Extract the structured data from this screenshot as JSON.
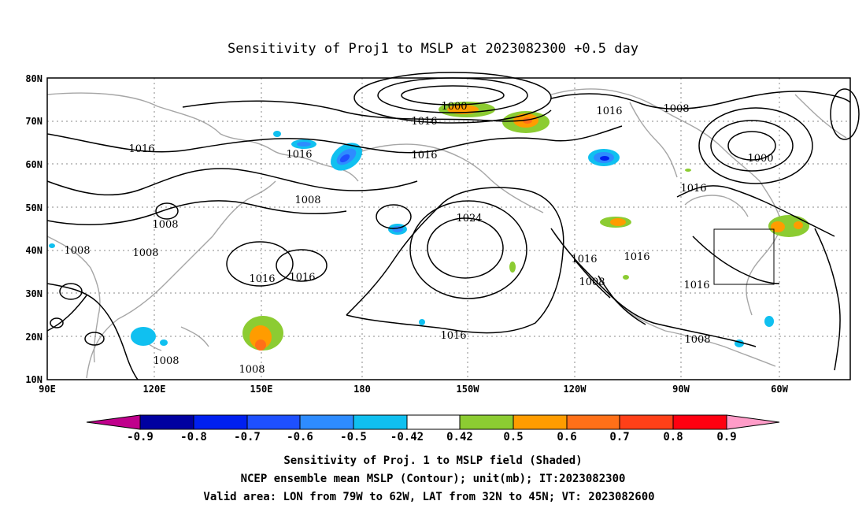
{
  "title": "Sensitivity of Proj1 to MSLP at 2023082300 +0.5 day",
  "lat_labels": [
    "80N",
    "70N",
    "60N",
    "50N",
    "40N",
    "30N",
    "20N",
    "10N"
  ],
  "lon_labels": [
    "90E",
    "120E",
    "150E",
    "180",
    "150W",
    "120W",
    "90W",
    "60W"
  ],
  "contour_labels": [
    "1000",
    "1016",
    "1016",
    "1008",
    "1016",
    "1016",
    "1008",
    "1016",
    "1000",
    "1016",
    "1016",
    "1008",
    "1008",
    "1024",
    "1016",
    "1016",
    "1008",
    "1008",
    "1016",
    "1016",
    "1016",
    "1008",
    "1008",
    "1016",
    "1008",
    "1008"
  ],
  "colorbar": {
    "labels": [
      "-0.9",
      "-0.8",
      "-0.7",
      "-0.6",
      "-0.5",
      "-0.42",
      "0.42",
      "0.5",
      "0.6",
      "0.7",
      "0.8",
      "0.9"
    ],
    "colors": [
      "#c0008c",
      "#0000a0",
      "#0020f0",
      "#1e50ff",
      "#2e8cff",
      "#10c0f0",
      "#ffffff",
      "#8ccc32",
      "#ff9c00",
      "#ff7018",
      "#ff4018",
      "#ff0010",
      "#ff9cc8"
    ]
  },
  "captions": [
    "Sensitivity of Proj. 1 to MSLP field (Shaded)",
    "NCEP ensemble mean MSLP (Contour); unit(mb); IT:2023082300",
    "Valid area: LON from 79W to 62W, LAT from 32N to 45N; VT: 2023082600"
  ],
  "colors": {
    "frame": "#000000",
    "contour": "#000000",
    "coast": "#a6a6a6",
    "grid": "#888888"
  }
}
